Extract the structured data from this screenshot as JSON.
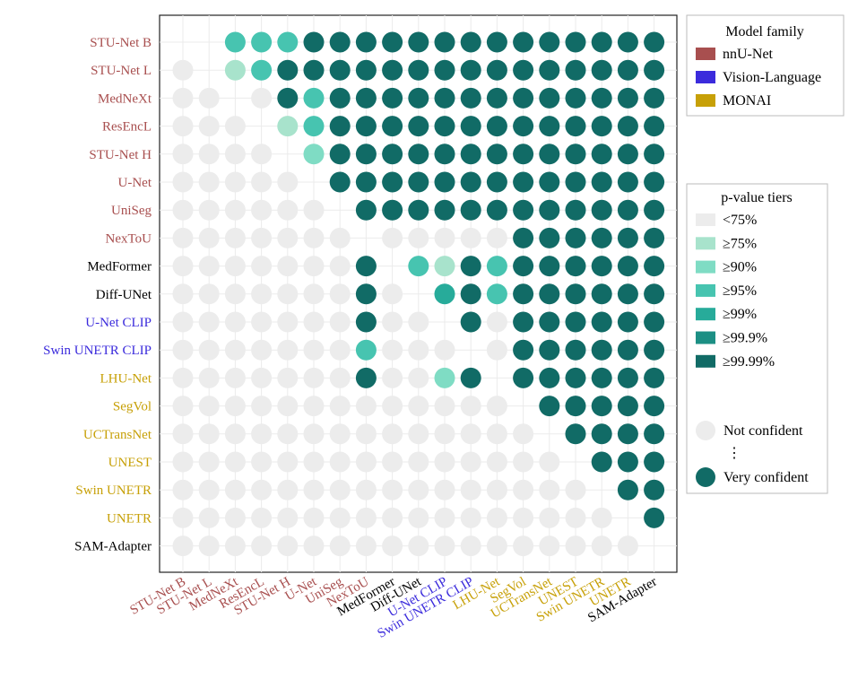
{
  "chart_data": {
    "type": "heatmap",
    "title": "",
    "xlabel": "",
    "ylabel": "",
    "models": [
      {
        "name": "STU-Net B",
        "family": "nnU-Net"
      },
      {
        "name": "STU-Net L",
        "family": "nnU-Net"
      },
      {
        "name": "MedNeXt",
        "family": "nnU-Net"
      },
      {
        "name": "ResEncL",
        "family": "nnU-Net"
      },
      {
        "name": "STU-Net H",
        "family": "nnU-Net"
      },
      {
        "name": "U-Net",
        "family": "nnU-Net"
      },
      {
        "name": "UniSeg",
        "family": "nnU-Net"
      },
      {
        "name": "NexToU",
        "family": "nnU-Net"
      },
      {
        "name": "MedFormer",
        "family": "Other"
      },
      {
        "name": "Diff-UNet",
        "family": "Other"
      },
      {
        "name": "U-Net CLIP",
        "family": "Vision-Language"
      },
      {
        "name": "Swin UNETR CLIP",
        "family": "Vision-Language"
      },
      {
        "name": "LHU-Net",
        "family": "MONAI"
      },
      {
        "name": "SegVol",
        "family": "MONAI"
      },
      {
        "name": "UCTransNet",
        "family": "MONAI"
      },
      {
        "name": "UNEST",
        "family": "MONAI"
      },
      {
        "name": "Swin UNETR",
        "family": "MONAI"
      },
      {
        "name": "UNETR",
        "family": "MONAI"
      },
      {
        "name": "SAM-Adapter",
        "family": "Other"
      }
    ],
    "tier_matrix_note": "rows = y models (top to bottom), columns = x models (left to right); 0 = <75% (not confident), 1 = ≥75%, 2 = ≥90%, 3 = ≥95%, 4 = ≥99%, 5 = ≥99.9%, 6 = ≥99.99%, -1 = no dot",
    "tiers": [
      [
        -1,
        -1,
        3,
        3,
        3,
        6,
        6,
        6,
        6,
        6,
        6,
        6,
        6,
        6,
        6,
        6,
        6,
        6,
        6
      ],
      [
        0,
        -1,
        1,
        3,
        6,
        6,
        6,
        6,
        6,
        6,
        6,
        6,
        6,
        6,
        6,
        6,
        6,
        6,
        6
      ],
      [
        0,
        0,
        -1,
        0,
        6,
        3,
        6,
        6,
        6,
        6,
        6,
        6,
        6,
        6,
        6,
        6,
        6,
        6,
        6
      ],
      [
        0,
        0,
        0,
        -1,
        1,
        3,
        6,
        6,
        6,
        6,
        6,
        6,
        6,
        6,
        6,
        6,
        6,
        6,
        6
      ],
      [
        0,
        0,
        0,
        0,
        -1,
        2,
        6,
        6,
        6,
        6,
        6,
        6,
        6,
        6,
        6,
        6,
        6,
        6,
        6
      ],
      [
        0,
        0,
        0,
        0,
        0,
        -1,
        6,
        6,
        6,
        6,
        6,
        6,
        6,
        6,
        6,
        6,
        6,
        6,
        6
      ],
      [
        0,
        0,
        0,
        0,
        0,
        0,
        -1,
        6,
        6,
        6,
        6,
        6,
        6,
        6,
        6,
        6,
        6,
        6,
        6
      ],
      [
        0,
        0,
        0,
        0,
        0,
        0,
        0,
        -1,
        0,
        0,
        0,
        0,
        0,
        6,
        6,
        6,
        6,
        6,
        6
      ],
      [
        0,
        0,
        0,
        0,
        0,
        0,
        0,
        6,
        -1,
        3,
        1,
        6,
        3,
        6,
        6,
        6,
        6,
        6,
        6
      ],
      [
        0,
        0,
        0,
        0,
        0,
        0,
        0,
        6,
        0,
        -1,
        4,
        6,
        3,
        6,
        6,
        6,
        6,
        6,
        6
      ],
      [
        0,
        0,
        0,
        0,
        0,
        0,
        0,
        6,
        0,
        0,
        -1,
        6,
        0,
        6,
        6,
        6,
        6,
        6,
        6
      ],
      [
        0,
        0,
        0,
        0,
        0,
        0,
        0,
        3,
        0,
        0,
        0,
        -1,
        0,
        6,
        6,
        6,
        6,
        6,
        6
      ],
      [
        0,
        0,
        0,
        0,
        0,
        0,
        0,
        6,
        0,
        0,
        2,
        6,
        -1,
        6,
        6,
        6,
        6,
        6,
        6
      ],
      [
        0,
        0,
        0,
        0,
        0,
        0,
        0,
        0,
        0,
        0,
        0,
        0,
        0,
        -1,
        6,
        6,
        6,
        6,
        6
      ],
      [
        0,
        0,
        0,
        0,
        0,
        0,
        0,
        0,
        0,
        0,
        0,
        0,
        0,
        0,
        -1,
        6,
        6,
        6,
        6
      ],
      [
        0,
        0,
        0,
        0,
        0,
        0,
        0,
        0,
        0,
        0,
        0,
        0,
        0,
        0,
        0,
        -1,
        6,
        6,
        6
      ],
      [
        0,
        0,
        0,
        0,
        0,
        0,
        0,
        0,
        0,
        0,
        0,
        0,
        0,
        0,
        0,
        0,
        -1,
        6,
        6
      ],
      [
        0,
        0,
        0,
        0,
        0,
        0,
        0,
        0,
        0,
        0,
        0,
        0,
        0,
        0,
        0,
        0,
        0,
        -1,
        6
      ],
      [
        0,
        0,
        0,
        0,
        0,
        0,
        0,
        0,
        0,
        0,
        0,
        0,
        0,
        0,
        0,
        0,
        0,
        0,
        -1
      ]
    ],
    "tier_colors": [
      "#ececec",
      "#a8e3cc",
      "#7fdcc4",
      "#47c4b0",
      "#27ab9a",
      "#1c8f84",
      "#116b66"
    ],
    "family_colors": {
      "nnU-Net": "#a84f4f",
      "Vision-Language": "#3b2bdc",
      "MONAI": "#c7a007",
      "Other": "#000000"
    },
    "legend_placement": "right",
    "grid": true
  },
  "legend": {
    "family": {
      "title": "Model family",
      "items": [
        {
          "label": "nnU-Net",
          "color": "#a84f4f"
        },
        {
          "label": "Vision-Language",
          "color": "#3b2bdc"
        },
        {
          "label": "MONAI",
          "color": "#c7a007"
        }
      ]
    },
    "pvalue": {
      "title": "p-value tiers",
      "items": [
        {
          "label": "<75%",
          "color": "#ececec"
        },
        {
          "label": "≥75%",
          "color": "#a8e3cc"
        },
        {
          "label": "≥90%",
          "color": "#7fdcc4"
        },
        {
          "label": "≥95%",
          "color": "#47c4b0"
        },
        {
          "label": "≥99%",
          "color": "#27ab9a"
        },
        {
          "label": "≥99.9%",
          "color": "#1c8f84"
        },
        {
          "label": "≥99.99%",
          "color": "#116b66"
        }
      ],
      "not_confident": "Not confident",
      "dots": "⋮",
      "very_confident": "Very confident"
    }
  }
}
